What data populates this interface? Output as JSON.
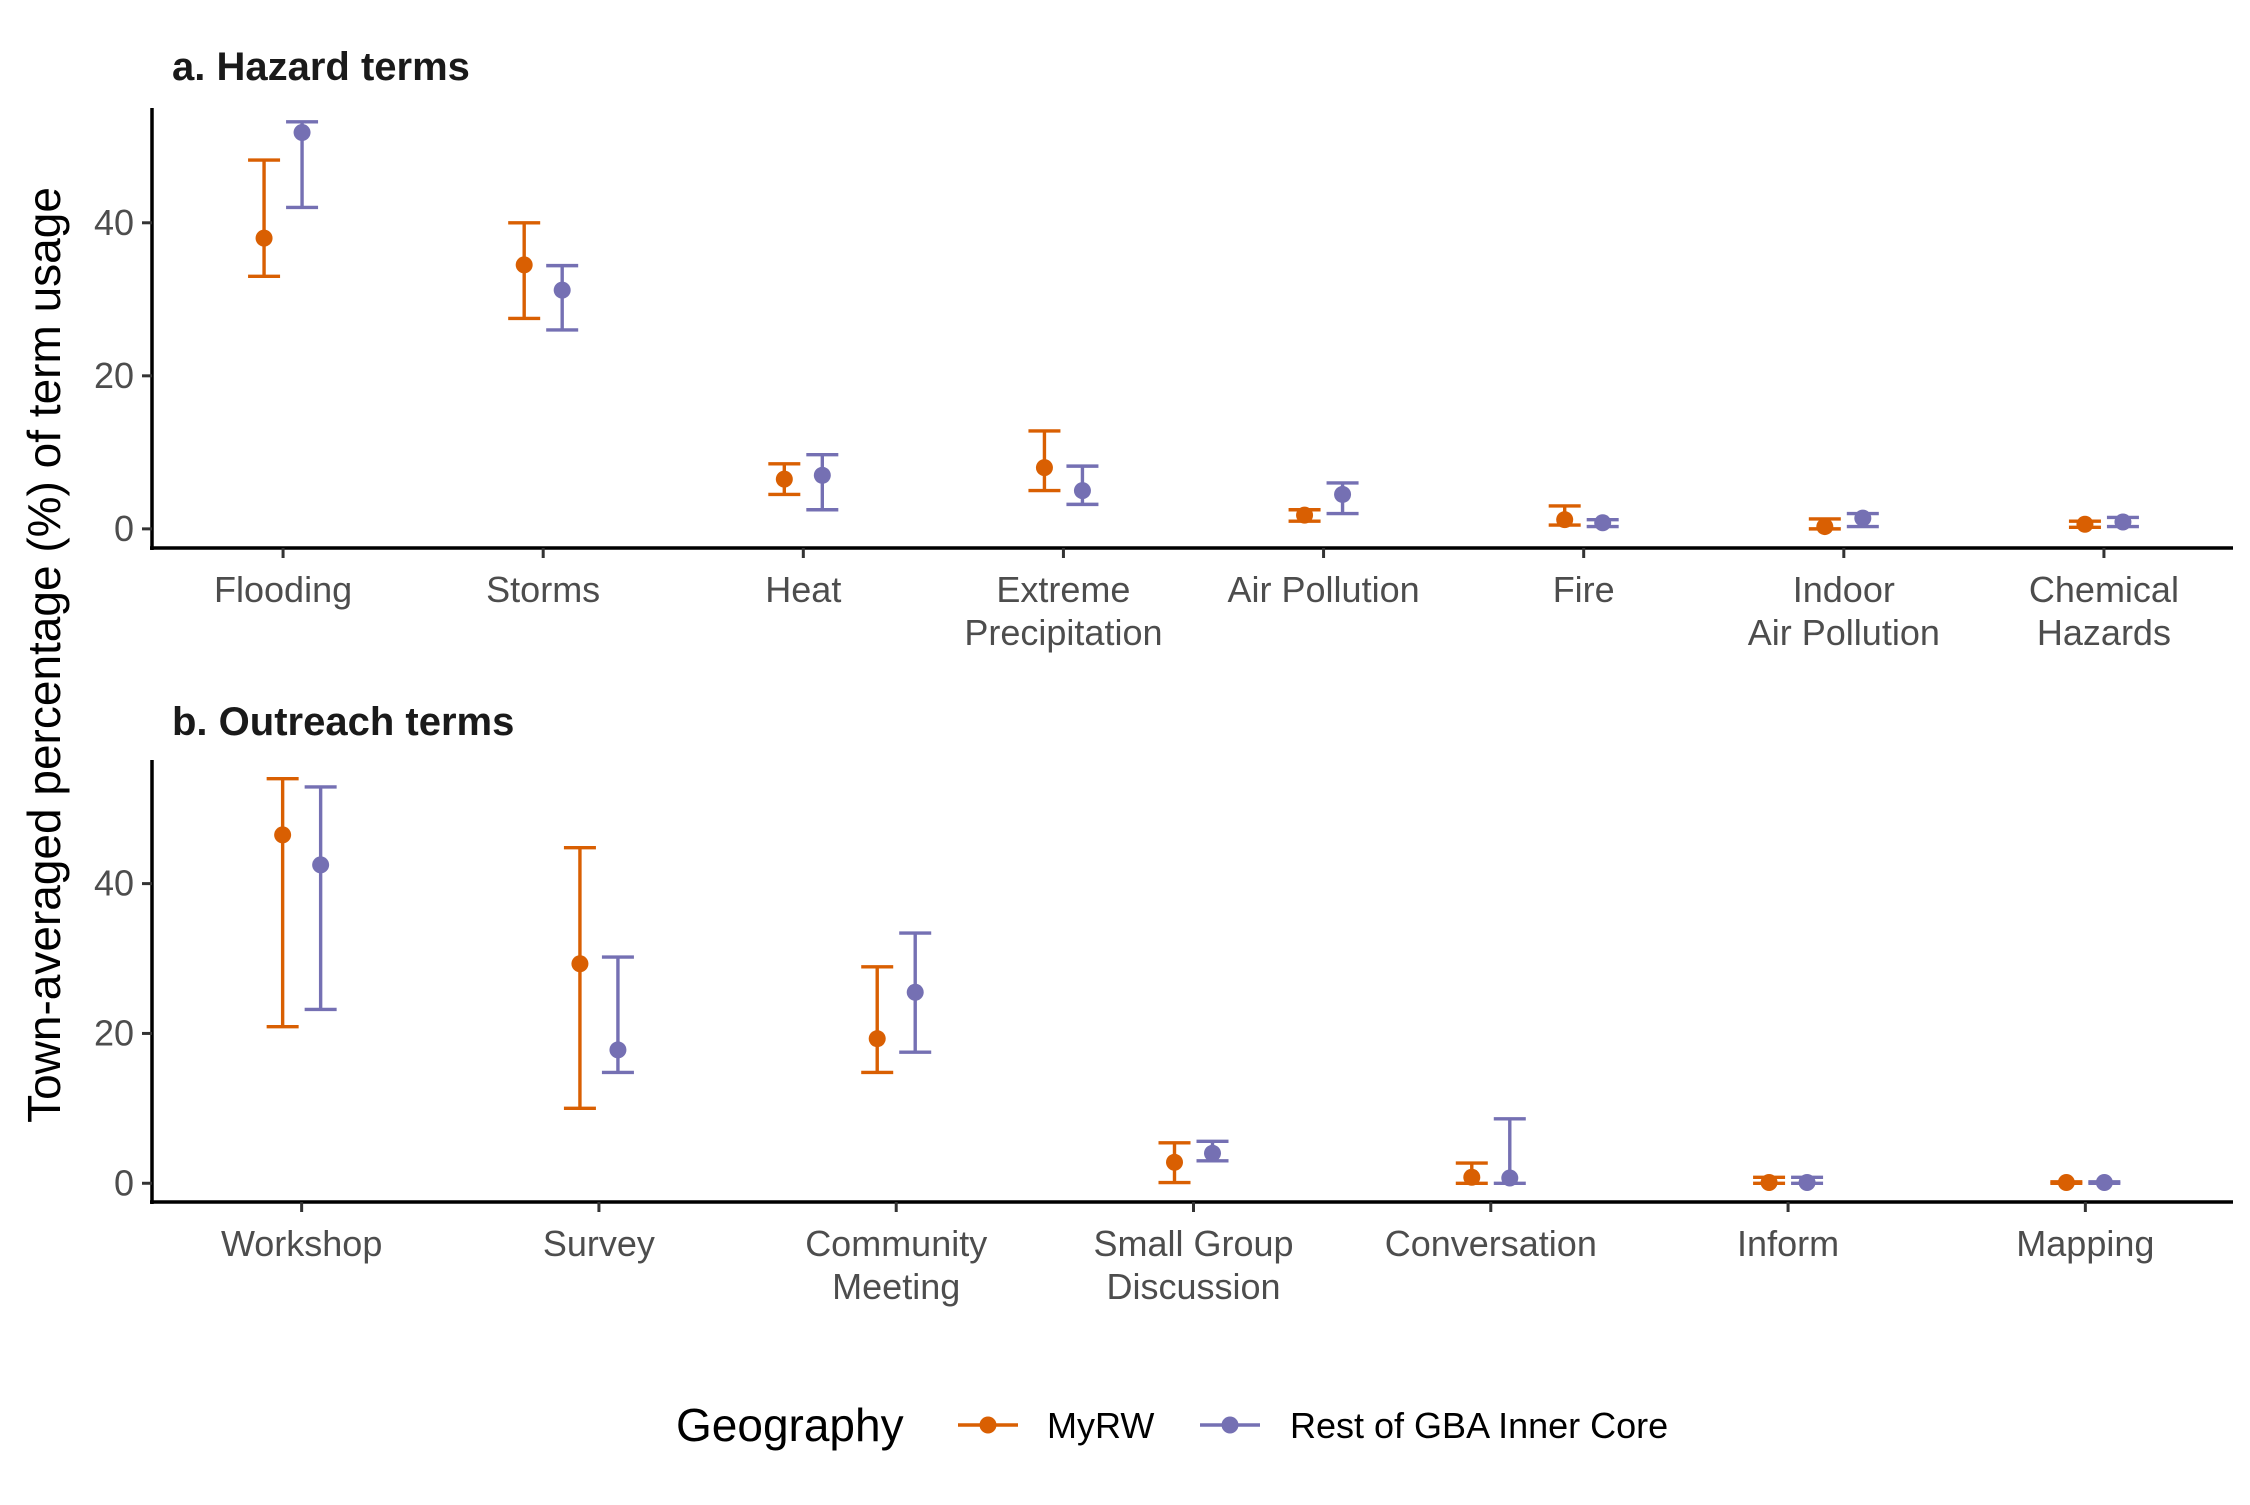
{
  "chart_data": {
    "type": "errorbar",
    "ylabel": "Town-averaged percentage (%) of term usage",
    "legend": {
      "title": "Geography",
      "placement": "bottom",
      "entries": [
        {
          "name": "MyRW",
          "color": "#D95F02"
        },
        {
          "name": "Rest of GBA Inner Core",
          "color": "#7570B3"
        }
      ]
    },
    "grid": false,
    "panels": [
      {
        "title": "a. Hazard terms",
        "categories": [
          [
            "Flooding"
          ],
          [
            "Storms"
          ],
          [
            "Heat"
          ],
          [
            "Extreme",
            "Precipitation"
          ],
          [
            "Air Pollution"
          ],
          [
            "Fire"
          ],
          [
            "Indoor",
            "Air Pollution"
          ],
          [
            "Chemical",
            "Hazards"
          ]
        ],
        "ylim": [
          -2.5,
          55
        ],
        "yticks": [
          0,
          20,
          40
        ],
        "series": [
          {
            "name": "MyRW",
            "values": [
              38.0,
              34.5,
              6.5,
              8.0,
              1.8,
              1.2,
              0.3,
              0.6
            ],
            "lower": [
              33.0,
              27.5,
              4.5,
              5.0,
              1.0,
              0.5,
              0.0,
              0.2
            ],
            "upper": [
              48.2,
              40.0,
              8.5,
              12.8,
              2.5,
              3.0,
              1.3,
              1.0
            ]
          },
          {
            "name": "Rest of GBA Inner Core",
            "values": [
              51.8,
              31.2,
              7.0,
              5.0,
              4.5,
              0.8,
              1.4,
              0.9
            ],
            "lower": [
              42.0,
              26.0,
              2.5,
              3.2,
              2.0,
              0.3,
              0.3,
              0.3
            ],
            "upper": [
              53.2,
              34.4,
              9.7,
              8.2,
              6.0,
              1.2,
              2.0,
              1.5
            ]
          }
        ]
      },
      {
        "title": "b. Outreach terms",
        "categories": [
          [
            "Workshop"
          ],
          [
            "Survey"
          ],
          [
            "Community",
            "Meeting"
          ],
          [
            "Small Group",
            "Discussion"
          ],
          [
            "Conversation"
          ],
          [
            "Inform"
          ],
          [
            "Mapping"
          ]
        ],
        "ylim": [
          -2.5,
          56.5
        ],
        "yticks": [
          0,
          20,
          40
        ],
        "series": [
          {
            "name": "MyRW",
            "values": [
              46.5,
              29.3,
              19.3,
              2.8,
              0.8,
              0.1,
              0.1
            ],
            "lower": [
              20.9,
              10.0,
              14.8,
              0.1,
              0.0,
              0.0,
              0.0
            ],
            "upper": [
              54.0,
              44.8,
              28.9,
              5.4,
              2.7,
              0.8,
              0.2
            ]
          },
          {
            "name": "Rest of GBA Inner Core",
            "values": [
              42.5,
              17.8,
              25.5,
              4.0,
              0.7,
              0.1,
              0.1
            ],
            "lower": [
              23.2,
              14.8,
              17.5,
              3.0,
              0.0,
              0.0,
              0.0
            ],
            "upper": [
              52.9,
              30.2,
              33.4,
              5.6,
              8.6,
              0.8,
              0.2
            ]
          }
        ]
      }
    ]
  }
}
